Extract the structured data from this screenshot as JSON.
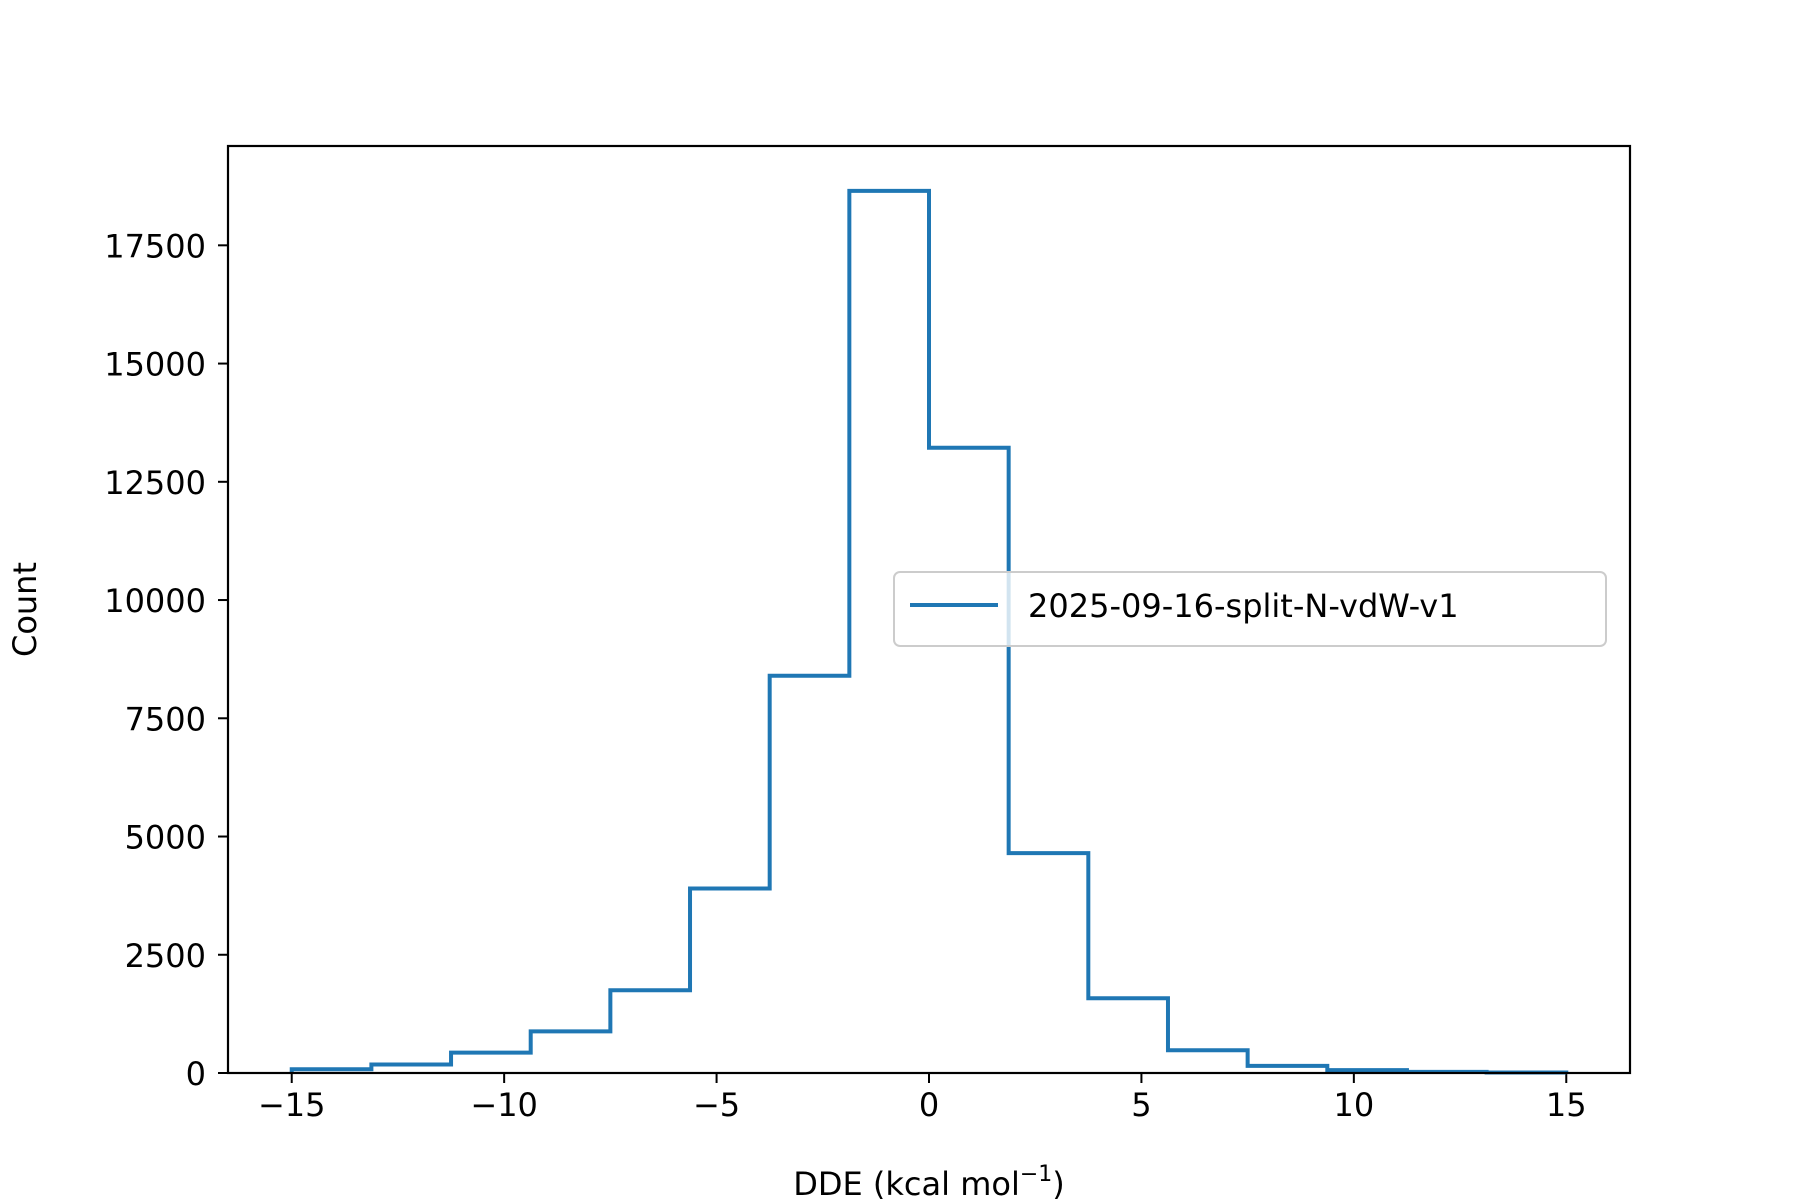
{
  "chart_data": {
    "type": "line",
    "subtype": "histogram-step",
    "xlabel": "DDE (kcal mol",
    "xlabel_superscript": "−1",
    "xlabel_suffix": ")",
    "ylabel": "Count",
    "xlim": [
      -16.5,
      16.5
    ],
    "ylim": [
      0,
      19600
    ],
    "x_ticks": [
      -15,
      -10,
      -5,
      0,
      5,
      10,
      15
    ],
    "x_tick_labels": [
      "−15",
      "−10",
      "−5",
      "0",
      "5",
      "10",
      "15"
    ],
    "y_ticks": [
      0,
      2500,
      5000,
      7500,
      10000,
      12500,
      15000,
      17500
    ],
    "y_tick_labels": [
      "0",
      "2500",
      "5000",
      "7500",
      "10000",
      "12500",
      "15000",
      "17500"
    ],
    "legend_position": "center-right",
    "series": [
      {
        "name": "2025-09-16-split-N-vdW-v1",
        "color": "#1f77b4",
        "bin_edges": [
          -15,
          -13.125,
          -11.25,
          -9.375,
          -7.5,
          -5.625,
          -3.75,
          -1.875,
          0,
          1.875,
          3.75,
          5.625,
          7.5,
          9.375,
          11.25,
          13.125,
          15
        ],
        "counts": [
          80,
          180,
          430,
          880,
          1750,
          3900,
          8400,
          18650,
          13220,
          4650,
          1580,
          480,
          150,
          60,
          25,
          10
        ]
      }
    ]
  }
}
